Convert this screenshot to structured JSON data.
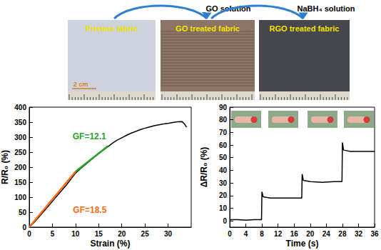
{
  "figure": {
    "steps": [
      "GO solution",
      "NaBH₄ solution"
    ],
    "photos": [
      {
        "label": "Pristine fabric",
        "scale_bar": "2 cm"
      },
      {
        "label": "GO treated fabric"
      },
      {
        "label": "RGO treated fabric"
      }
    ]
  },
  "chart_data": [
    {
      "type": "line",
      "x_label": "Strain (%)",
      "y_label": "R/R₀ (%)",
      "xlim": [
        0,
        35
      ],
      "ylim": [
        0,
        400
      ],
      "xticks": [
        0,
        5,
        10,
        15,
        20,
        25,
        30
      ],
      "yticks": [
        0,
        50,
        100,
        150,
        200,
        250,
        300,
        350,
        400
      ],
      "grid": false,
      "series": [
        {
          "color": "#000000",
          "x": [
            0,
            1,
            2,
            3,
            4,
            5,
            6,
            7,
            8,
            9,
            10,
            11,
            12,
            13,
            14,
            15,
            16,
            17,
            18,
            19,
            20,
            21,
            22,
            23,
            24,
            25,
            26,
            27,
            28,
            29,
            30,
            31,
            32,
            33,
            33.5,
            34
          ],
          "values": [
            0,
            15,
            32,
            50,
            68,
            86,
            104,
            122,
            140,
            160,
            180,
            194,
            207,
            220,
            233,
            245,
            257,
            268,
            280,
            290,
            298,
            306,
            313,
            319,
            325,
            330,
            334,
            338,
            341,
            344,
            346,
            349,
            351,
            352,
            345,
            333
          ]
        },
        {
          "color": "#ff6a13",
          "x": [
            0,
            10
          ],
          "values": [
            0,
            185
          ],
          "label": "GF=18.5"
        },
        {
          "color": "#2ca02c",
          "x": [
            10,
            17
          ],
          "values": [
            185,
            270
          ],
          "label": "GF=12.1"
        }
      ]
    },
    {
      "type": "line",
      "x_label": "Time (s)",
      "y_label": "ΔR/R₀ (%)",
      "xlim": [
        0,
        36
      ],
      "ylim": [
        -5,
        90
      ],
      "xticks": [
        0,
        4,
        8,
        12,
        16,
        20,
        24,
        28,
        32,
        36
      ],
      "yticks": [
        0,
        10,
        20,
        30,
        40,
        50,
        60,
        70,
        80,
        90
      ],
      "grid": false,
      "series": [
        {
          "color": "#000000",
          "x": [
            0,
            2,
            4,
            6,
            7.9,
            8,
            8.3,
            10,
            13,
            16,
            17.9,
            18,
            18.3,
            20,
            23,
            26,
            27.9,
            28,
            28.3,
            30,
            33,
            36
          ],
          "values": [
            1,
            1,
            0.5,
            1,
            1,
            23,
            19,
            18,
            18,
            18,
            18,
            37,
            32,
            31,
            30.5,
            31,
            31,
            62,
            56,
            55,
            55,
            55
          ]
        }
      ]
    }
  ]
}
